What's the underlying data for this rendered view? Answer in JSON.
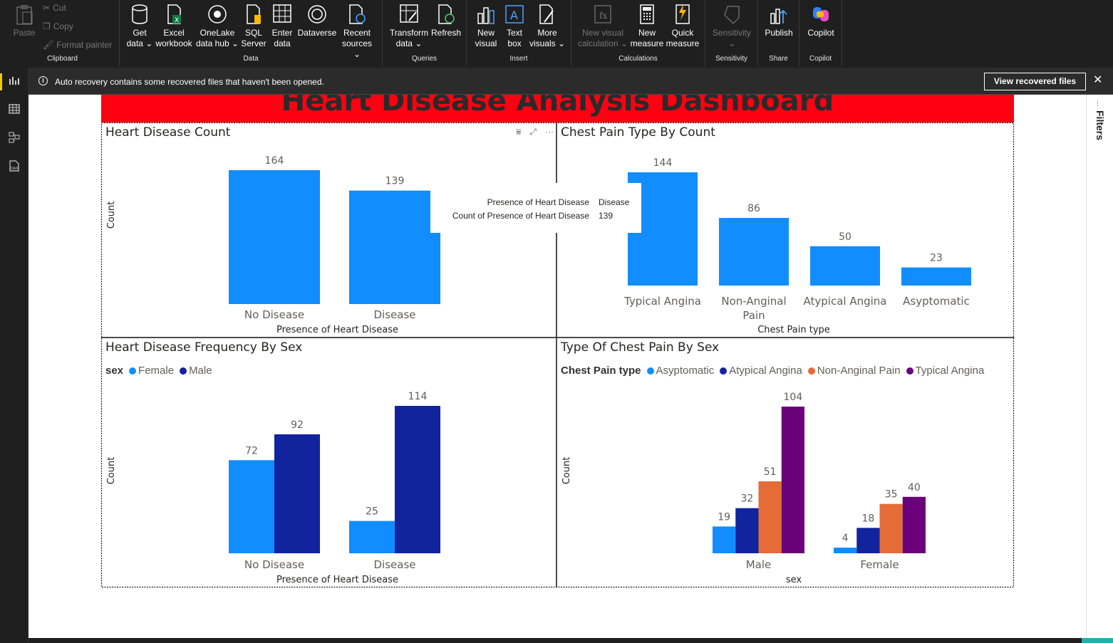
{
  "ribbon": {
    "clipboard": {
      "label": "Clipboard",
      "paste": "Paste",
      "cut": "Cut",
      "copy": "Copy",
      "format_painter": "Format painter"
    },
    "data": {
      "label": "Data",
      "get_data": [
        "Get",
        "data ⌄"
      ],
      "excel": [
        "Excel",
        "workbook"
      ],
      "onelake": [
        "OneLake",
        "data hub ⌄"
      ],
      "sql": [
        "SQL",
        "Server"
      ],
      "enter": [
        "Enter",
        "data"
      ],
      "dataverse": [
        "Dataverse",
        ""
      ],
      "recent": [
        "Recent",
        "sources ⌄"
      ]
    },
    "queries": {
      "label": "Queries",
      "transform": [
        "Transform",
        "data ⌄"
      ],
      "refresh": [
        "Refresh",
        ""
      ]
    },
    "insert": {
      "label": "Insert",
      "new_visual": [
        "New",
        "visual"
      ],
      "text_box": [
        "Text",
        "box"
      ],
      "more_visuals": [
        "More",
        "visuals ⌄"
      ]
    },
    "calculations": {
      "label": "Calculations",
      "new_visual_calc": [
        "New visual",
        "calculation ⌄"
      ],
      "new_measure": [
        "New",
        "measure"
      ],
      "quick_measure": [
        "Quick",
        "measure"
      ]
    },
    "sensitivity": {
      "label": "Sensitivity",
      "btn": [
        "Sensitivity",
        "⌄"
      ]
    },
    "share": {
      "label": "Share",
      "publish": [
        "Publish",
        ""
      ]
    },
    "copilot": {
      "label": "Copilot",
      "btn": [
        "Copilot",
        ""
      ]
    }
  },
  "notification": {
    "message": "Auto recovery contains some recovered files that haven't been opened.",
    "button": "View recovered files",
    "close": "✕"
  },
  "filters_pane": {
    "label": "Filters"
  },
  "report": {
    "title": "Heart Disease Analysis Dashboard"
  },
  "colors": {
    "light_blue": "#118dff",
    "dark_blue": "#12239e",
    "orange": "#e66c37",
    "purple": "#6b007b",
    "banner_red": "#ff0012"
  },
  "tooltip": {
    "rows": [
      {
        "key": "Presence of Heart Disease",
        "value": "Disease"
      },
      {
        "key": "Count of Presence of Heart Disease",
        "value": "139"
      }
    ]
  },
  "chart_data": [
    {
      "id": "hd_count",
      "type": "bar",
      "title": "Heart Disease Count",
      "xlabel": "Presence of Heart Disease",
      "ylabel": "Count",
      "categories": [
        "No Disease",
        "Disease"
      ],
      "series": [
        {
          "values": [
            164,
            139
          ],
          "color": "#118dff"
        }
      ],
      "ylim": [
        0,
        164
      ],
      "grid": false
    },
    {
      "id": "cp_count",
      "type": "bar",
      "title": "Chest Pain Type By Count",
      "xlabel": "Chest Pain type",
      "ylabel": "",
      "categories": [
        "Typical Angina",
        "Non-Anginal Pain",
        "Atypical Angina",
        "Asyptomatic"
      ],
      "series": [
        {
          "values": [
            144,
            86,
            50,
            23
          ],
          "color": "#118dff"
        }
      ],
      "ylim": [
        0,
        144
      ],
      "grid": false
    },
    {
      "id": "hd_by_sex",
      "type": "bar",
      "title": "Heart Disease Frequency By Sex",
      "xlabel": "Presence of Heart Disease",
      "ylabel": "Count",
      "legend_title": "sex",
      "categories": [
        "No Disease",
        "Disease"
      ],
      "series": [
        {
          "name": "Female",
          "values": [
            72,
            25
          ],
          "color": "#118dff"
        },
        {
          "name": "Male",
          "values": [
            92,
            114
          ],
          "color": "#12239e"
        }
      ],
      "ylim": [
        0,
        114
      ],
      "legend": "top-left",
      "grid": false
    },
    {
      "id": "cp_by_sex",
      "type": "bar",
      "title": "Type Of Chest Pain By Sex",
      "xlabel": "sex",
      "ylabel": "Count",
      "legend_title": "Chest Pain type",
      "categories": [
        "Male",
        "Female"
      ],
      "series": [
        {
          "name": "Asyptomatic",
          "values": [
            19,
            4
          ],
          "color": "#118dff"
        },
        {
          "name": "Atypical Angina",
          "values": [
            32,
            18
          ],
          "color": "#12239e"
        },
        {
          "name": "Non-Anginal Pain",
          "values": [
            51,
            35
          ],
          "color": "#e66c37"
        },
        {
          "name": "Typical Angina",
          "values": [
            104,
            40
          ],
          "color": "#6b007b"
        }
      ],
      "ylim": [
        0,
        104
      ],
      "legend": "top-left",
      "grid": false
    }
  ]
}
